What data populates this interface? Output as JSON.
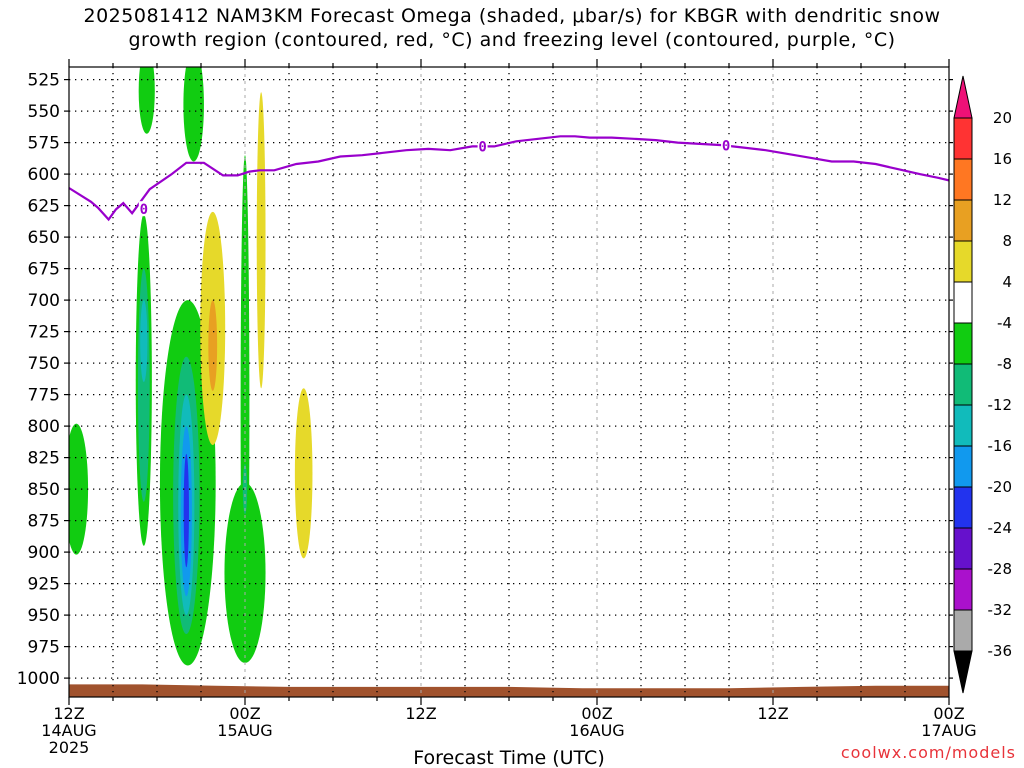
{
  "title_lines": [
    "2025081412 NAM3KM Forecast Omega (shaded, μbar/s) for KBGR with dendritic snow",
    "growth region (contoured, red, °C) and freezing level (contoured, purple, °C)"
  ],
  "credit": "coolwx.com/models",
  "chart_data": {
    "type": "heatmap",
    "title": "2025081412 NAM3KM Forecast Omega (shaded, μbar/s) for KBGR with dendritic snow growth region (contoured, red, °C) and freezing level (contoured, purple, °C)",
    "xlabel": "Forecast Time (UTC)",
    "ylabel": "",
    "x_unit": "hours since 2025-08-14 12Z",
    "xlim": [
      0,
      60
    ],
    "x_ticks": [
      {
        "hour": 0,
        "lines": [
          "12Z",
          "14AUG",
          "2025"
        ]
      },
      {
        "hour": 12,
        "lines": [
          "00Z",
          "15AUG"
        ]
      },
      {
        "hour": 24,
        "lines": [
          "12Z"
        ]
      },
      {
        "hour": 36,
        "lines": [
          "00Z",
          "16AUG"
        ]
      },
      {
        "hour": 48,
        "lines": [
          "12Z"
        ]
      },
      {
        "hour": 60,
        "lines": [
          "00Z",
          "17AUG"
        ]
      }
    ],
    "y_unit": "hPa",
    "ylim": [
      1015,
      515
    ],
    "y_ticks": [
      525,
      550,
      575,
      600,
      625,
      650,
      675,
      700,
      725,
      750,
      775,
      800,
      825,
      850,
      875,
      900,
      925,
      950,
      975,
      1000
    ],
    "grid": true,
    "colorbar": {
      "label_ticks": [
        20,
        16,
        12,
        8,
        4,
        -4,
        -8,
        -12,
        -16,
        -20,
        -24,
        -28,
        -32,
        -36
      ],
      "bins": [
        {
          "from": 16,
          "to": 20,
          "color": "#ff3333"
        },
        {
          "from": 12,
          "to": 16,
          "color": "#ff7722"
        },
        {
          "from": 8,
          "to": 12,
          "color": "#e8a022"
        },
        {
          "from": 4,
          "to": 8,
          "color": "#e6d92a"
        },
        {
          "from": -4,
          "to": 4,
          "color": "#ffffff"
        },
        {
          "from": -8,
          "to": -4,
          "color": "#11cc11"
        },
        {
          "from": -12,
          "to": -8,
          "color": "#11bb77"
        },
        {
          "from": -16,
          "to": -12,
          "color": "#11bbbb"
        },
        {
          "from": -20,
          "to": -16,
          "color": "#1199ee"
        },
        {
          "from": -24,
          "to": -20,
          "color": "#2233ee"
        },
        {
          "from": -28,
          "to": -24,
          "color": "#6611cc"
        },
        {
          "from": -32,
          "to": -28,
          "color": "#aa11cc"
        },
        {
          "from": -36,
          "to": -32,
          "color": "#aaaaaa"
        }
      ],
      "top_arrow_color": "#ee1177",
      "bottom_arrow_color": "#000000"
    },
    "terrain": {
      "color": "#a0522d",
      "top_hPa": [
        1005,
        1005,
        1006,
        1007,
        1007,
        1007,
        1007,
        1008,
        1008,
        1008,
        1007,
        1006,
        1006
      ]
    },
    "freezing_level": {
      "name": "0°C",
      "color": "#9900cc",
      "x": [
        0,
        1.5,
        2.0,
        2.7,
        3.2,
        3.7,
        4.3,
        5.5,
        7,
        8,
        9.2,
        10.5,
        11.5,
        12.3,
        13,
        14,
        15.5,
        17,
        18.5,
        20,
        21.5,
        23,
        24.5,
        26,
        27.5,
        29,
        30.5,
        32,
        33.5,
        34.5,
        35.5,
        37,
        38.5,
        40,
        41.5,
        43,
        44.5,
        46,
        47.5,
        49,
        50.5,
        52,
        53.5,
        55,
        56.5,
        58,
        59.3,
        60
      ],
      "y": [
        611,
        622,
        627,
        636,
        628,
        623,
        631,
        612,
        600,
        591,
        591,
        601,
        601,
        598,
        597,
        597,
        592,
        590,
        586,
        585,
        583,
        581,
        580,
        581,
        578,
        578,
        574,
        572,
        570,
        570,
        571,
        571,
        572,
        573,
        575,
        576,
        577,
        579,
        581,
        584,
        587,
        590,
        590,
        592,
        596,
        600,
        603,
        605
      ],
      "labels": [
        {
          "x": 5.1,
          "text": "0"
        },
        {
          "x": 28.2,
          "text": "0"
        },
        {
          "x": 44.8,
          "text": "0"
        }
      ]
    },
    "omega_regions": [
      {
        "bin": "-4to-8",
        "hour": 0.5,
        "hPa_top": 798,
        "hPa_bottom": 902,
        "half_width_h": 0.8
      },
      {
        "bin": "-4to-8",
        "hour": 5.1,
        "hPa_top": 632,
        "hPa_bottom": 895,
        "half_width_h": 0.55
      },
      {
        "bin": "-8to-12",
        "hour": 5.1,
        "hPa_top": 675,
        "hPa_bottom": 860,
        "half_width_h": 0.4
      },
      {
        "bin": "-12to-16",
        "hour": 5.1,
        "hPa_top": 700,
        "hPa_bottom": 765,
        "half_width_h": 0.25
      },
      {
        "bin": "-4to-8",
        "hour": 5.3,
        "hPa_top": 500,
        "hPa_bottom": 568,
        "half_width_h": 0.55
      },
      {
        "bin": "-4to-8",
        "hour": 8.5,
        "hPa_top": 500,
        "hPa_bottom": 590,
        "half_width_h": 0.7
      },
      {
        "bin": "-4to-8",
        "hour": 8.1,
        "hPa_top": 700,
        "hPa_bottom": 990,
        "half_width_h": 1.9
      },
      {
        "bin": "-8to-12",
        "hour": 8.0,
        "hPa_top": 745,
        "hPa_bottom": 965,
        "half_width_h": 0.9
      },
      {
        "bin": "-12to-16",
        "hour": 8.0,
        "hPa_top": 775,
        "hPa_bottom": 950,
        "half_width_h": 0.55
      },
      {
        "bin": "-16to-20",
        "hour": 8.0,
        "hPa_top": 800,
        "hPa_bottom": 935,
        "half_width_h": 0.38
      },
      {
        "bin": "-20to-24",
        "hour": 8.0,
        "hPa_top": 822,
        "hPa_bottom": 912,
        "half_width_h": 0.18
      },
      {
        "bin": "4to8",
        "hour": 9.8,
        "hPa_top": 630,
        "hPa_bottom": 815,
        "half_width_h": 0.85
      },
      {
        "bin": "8to12",
        "hour": 9.8,
        "hPa_top": 700,
        "hPa_bottom": 772,
        "half_width_h": 0.3
      },
      {
        "bin": "-4to-8",
        "hour": 12.0,
        "hPa_top": 585,
        "hPa_bottom": 985,
        "half_width_h": 0.3
      },
      {
        "bin": "-4to-8",
        "hour": 12.0,
        "hPa_top": 845,
        "hPa_bottom": 988,
        "half_width_h": 1.4
      },
      {
        "bin": "-8to-12",
        "hour": 12.0,
        "hPa_top": 830,
        "hPa_bottom": 870,
        "half_width_h": 0.15
      },
      {
        "bin": "4to8",
        "hour": 13.1,
        "hPa_top": 535,
        "hPa_bottom": 770,
        "half_width_h": 0.3
      },
      {
        "bin": "4to8",
        "hour": 16.0,
        "hPa_top": 770,
        "hPa_bottom": 905,
        "half_width_h": 0.6
      }
    ]
  }
}
